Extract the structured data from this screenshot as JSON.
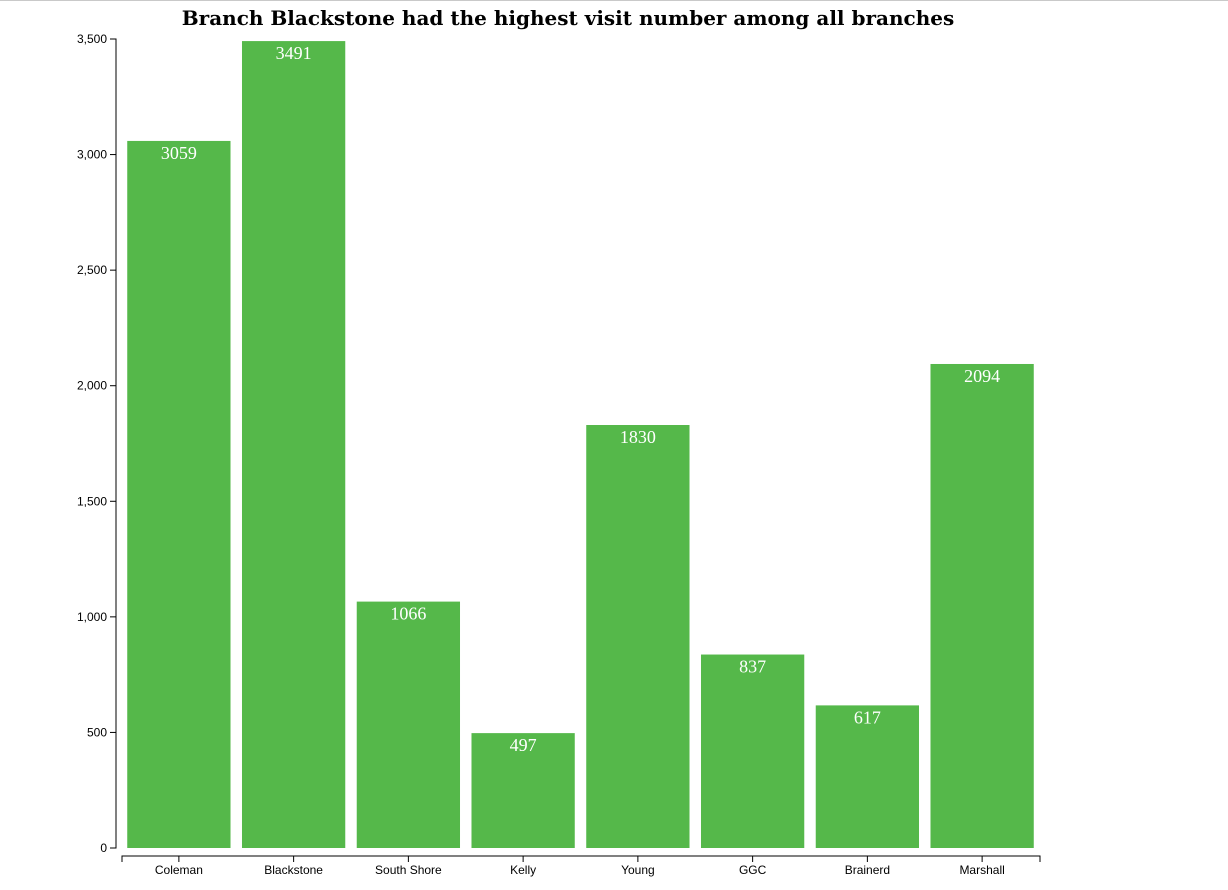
{
  "chart_data": {
    "type": "bar",
    "title": "Branch Blackstone had the highest visit number among all branches",
    "xlabel": "",
    "ylabel": "",
    "categories": [
      "Coleman",
      "Blackstone",
      "South Shore",
      "Kelly",
      "Young",
      "GGC",
      "Brainerd",
      "Marshall"
    ],
    "values": [
      3059,
      3491,
      1066,
      497,
      1830,
      837,
      617,
      2094
    ],
    "value_labels": [
      "3059",
      "3491",
      "1066",
      "497",
      "1830",
      "837",
      "617",
      "2094"
    ],
    "ylim": [
      0,
      3500
    ],
    "yticks": [
      0,
      500,
      1000,
      1500,
      2000,
      2500,
      3000,
      3500
    ],
    "ytick_labels": [
      "0",
      "500",
      "1,000",
      "1,500",
      "2,000",
      "2,500",
      "3,000",
      "3,500"
    ],
    "bar_color": "#55b84a",
    "grid": false,
    "legend": "none"
  }
}
